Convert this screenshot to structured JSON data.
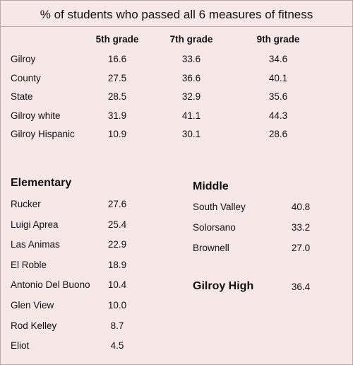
{
  "title": "% of students who passed all 6 measures of fitness",
  "grades_table": {
    "headers": [
      "5th grade",
      "7th grade",
      "9th grade"
    ],
    "rows": [
      [
        "Gilroy",
        "16.6",
        "33.6",
        "34.6"
      ],
      [
        "County",
        "27.5",
        "36.6",
        "40.1"
      ],
      [
        "State",
        "28.5",
        "32.9",
        "35.6"
      ],
      [
        "Gilroy white",
        "31.9",
        "41.1",
        "44.3"
      ],
      [
        "Gilroy Hispanic",
        "10.9",
        "30.1",
        "28.6"
      ]
    ]
  },
  "elementary": {
    "heading": "Elementary",
    "rows": [
      [
        "Rucker",
        "27.6"
      ],
      [
        "Luigi Aprea",
        "25.4"
      ],
      [
        "Las Animas",
        "22.9"
      ],
      [
        "El Roble",
        "18.9"
      ],
      [
        "Antonio Del Buono",
        "10.4"
      ],
      [
        "Glen View",
        "10.0"
      ],
      [
        "Rod Kelley",
        "8.7"
      ],
      [
        "Eliot",
        "4.5"
      ]
    ]
  },
  "middle": {
    "heading": "Middle",
    "rows": [
      [
        "South Valley",
        "40.8"
      ],
      [
        "Solorsano",
        "33.2"
      ],
      [
        "Brownell",
        "27.0"
      ]
    ]
  },
  "high": {
    "name": "Gilroy High",
    "value": "36.4"
  }
}
